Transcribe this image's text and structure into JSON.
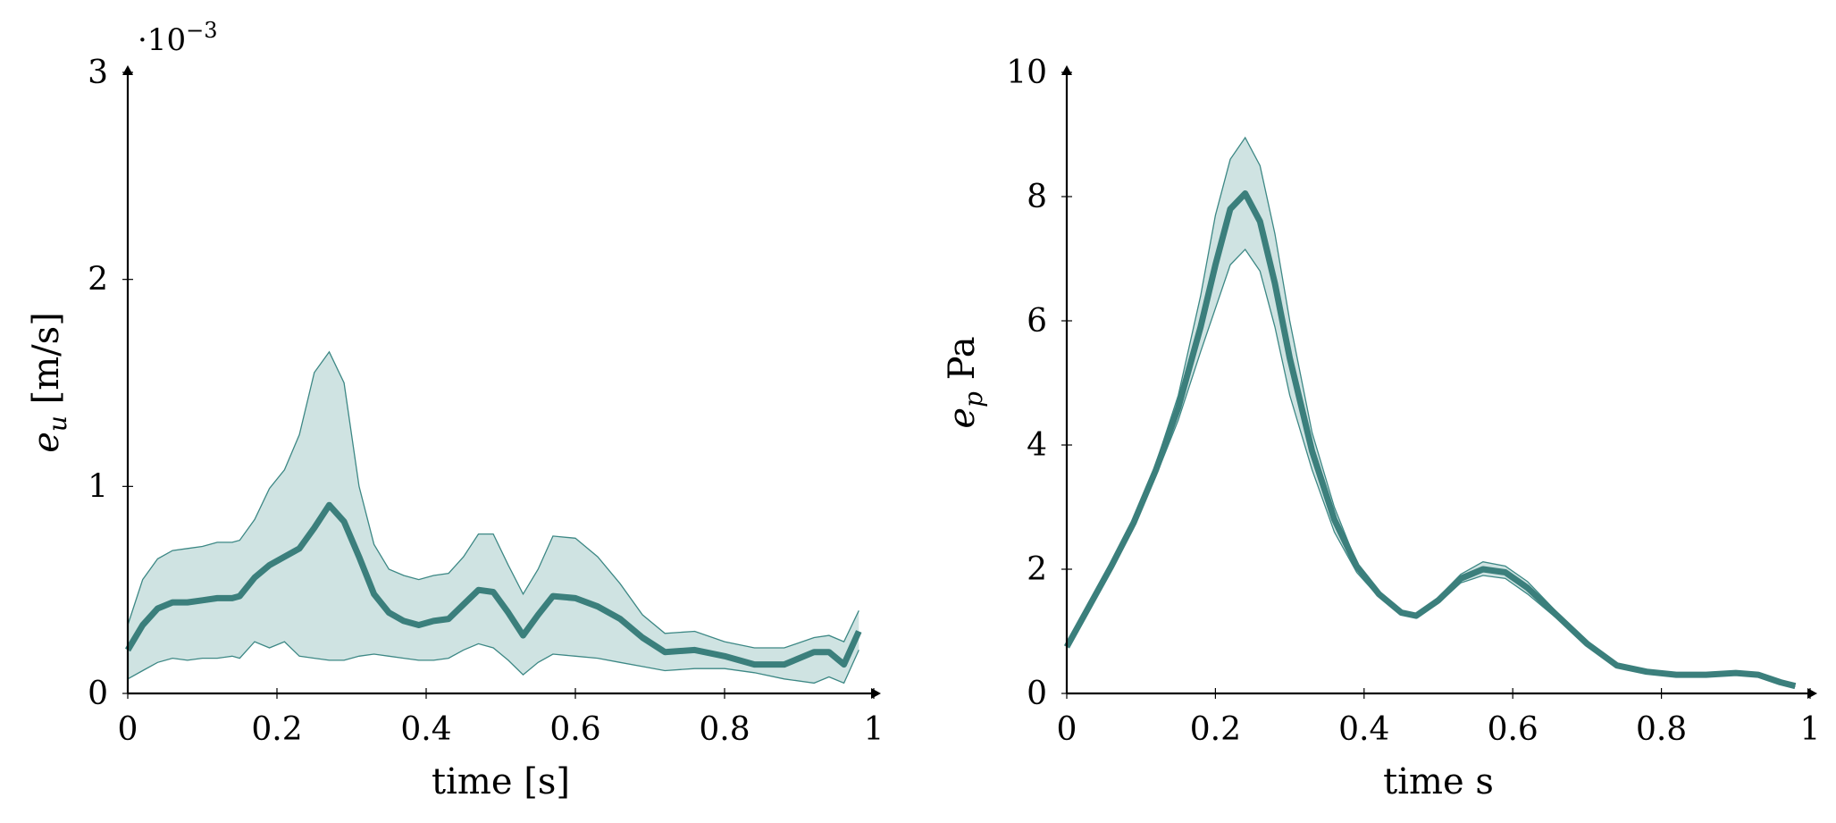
{
  "colors": {
    "band_fill": "#cfe3e2",
    "band_edge": "#3d8885",
    "mean_line": "#3b7f7c",
    "axis": "#000000"
  },
  "chart_data": [
    {
      "type": "area",
      "xlabel": "time [s]",
      "ylabel_main": "e",
      "ylabel_sub": "u",
      "ylabel_rest": " [m/s]",
      "y_multiplier_base": "·10",
      "y_multiplier_exp": "−3",
      "xlim": [
        0,
        1
      ],
      "ylim": [
        0,
        3
      ],
      "x_ticks": [
        0,
        0.2,
        0.4,
        0.6,
        0.8,
        1
      ],
      "x_tick_labels": [
        "0",
        "0.2",
        "0.4",
        "0.6",
        "0.8",
        "1"
      ],
      "y_ticks": [
        0,
        1,
        2,
        3
      ],
      "y_tick_labels": [
        "0",
        "1",
        "2",
        "3"
      ],
      "grid": false,
      "x": [
        0,
        0.02,
        0.04,
        0.06,
        0.08,
        0.1,
        0.12,
        0.14,
        0.15,
        0.17,
        0.19,
        0.21,
        0.23,
        0.25,
        0.27,
        0.29,
        0.31,
        0.33,
        0.35,
        0.37,
        0.39,
        0.41,
        0.43,
        0.45,
        0.47,
        0.49,
        0.51,
        0.53,
        0.55,
        0.57,
        0.6,
        0.63,
        0.66,
        0.69,
        0.72,
        0.76,
        0.8,
        0.84,
        0.88,
        0.92,
        0.94,
        0.96,
        0.98
      ],
      "series": [
        {
          "role": "mean",
          "values": [
            0.21,
            0.33,
            0.41,
            0.44,
            0.44,
            0.45,
            0.46,
            0.46,
            0.47,
            0.56,
            0.62,
            0.66,
            0.7,
            0.8,
            0.91,
            0.83,
            0.66,
            0.48,
            0.39,
            0.35,
            0.33,
            0.35,
            0.36,
            0.43,
            0.5,
            0.49,
            0.39,
            0.28,
            0.38,
            0.47,
            0.46,
            0.42,
            0.36,
            0.27,
            0.2,
            0.21,
            0.18,
            0.14,
            0.14,
            0.2,
            0.2,
            0.14,
            0.3
          ]
        },
        {
          "role": "upper",
          "values": [
            0.33,
            0.55,
            0.65,
            0.69,
            0.7,
            0.71,
            0.73,
            0.73,
            0.74,
            0.84,
            0.99,
            1.08,
            1.25,
            1.55,
            1.65,
            1.5,
            1.0,
            0.72,
            0.6,
            0.57,
            0.55,
            0.57,
            0.58,
            0.66,
            0.77,
            0.77,
            0.62,
            0.48,
            0.6,
            0.76,
            0.75,
            0.66,
            0.53,
            0.38,
            0.29,
            0.3,
            0.25,
            0.22,
            0.22,
            0.27,
            0.28,
            0.25,
            0.4
          ]
        },
        {
          "role": "lower",
          "values": [
            0.07,
            0.11,
            0.15,
            0.17,
            0.16,
            0.17,
            0.17,
            0.18,
            0.17,
            0.25,
            0.22,
            0.25,
            0.18,
            0.17,
            0.16,
            0.16,
            0.18,
            0.19,
            0.18,
            0.17,
            0.16,
            0.16,
            0.17,
            0.21,
            0.24,
            0.22,
            0.16,
            0.09,
            0.15,
            0.19,
            0.18,
            0.17,
            0.15,
            0.13,
            0.11,
            0.12,
            0.12,
            0.1,
            0.07,
            0.05,
            0.08,
            0.05,
            0.21
          ]
        }
      ]
    },
    {
      "type": "area",
      "xlabel": "time s",
      "ylabel_main": "e",
      "ylabel_sub": "p",
      "ylabel_rest": " Pa",
      "xlim": [
        0,
        1
      ],
      "ylim": [
        0,
        10
      ],
      "x_ticks": [
        0,
        0.2,
        0.4,
        0.6,
        0.8,
        1
      ],
      "x_tick_labels": [
        "0",
        "0.2",
        "0.4",
        "0.6",
        "0.8",
        "1"
      ],
      "y_ticks": [
        0,
        2,
        4,
        6,
        8,
        10
      ],
      "y_tick_labels": [
        "0",
        "2",
        "4",
        "6",
        "8",
        "10"
      ],
      "grid": false,
      "x": [
        0,
        0.03,
        0.06,
        0.09,
        0.12,
        0.15,
        0.18,
        0.2,
        0.22,
        0.24,
        0.26,
        0.28,
        0.3,
        0.33,
        0.36,
        0.39,
        0.42,
        0.45,
        0.47,
        0.5,
        0.53,
        0.56,
        0.59,
        0.62,
        0.66,
        0.7,
        0.74,
        0.78,
        0.82,
        0.86,
        0.9,
        0.93,
        0.96,
        0.98
      ],
      "series": [
        {
          "role": "mean",
          "values": [
            0.75,
            1.4,
            2.05,
            2.75,
            3.6,
            4.6,
            5.9,
            6.9,
            7.8,
            8.05,
            7.6,
            6.6,
            5.4,
            3.9,
            2.8,
            2.05,
            1.6,
            1.3,
            1.25,
            1.5,
            1.85,
            2.0,
            1.95,
            1.7,
            1.25,
            0.8,
            0.45,
            0.35,
            0.3,
            0.3,
            0.33,
            0.3,
            0.18,
            0.12
          ]
        },
        {
          "role": "upper",
          "values": [
            0.75,
            1.42,
            2.08,
            2.8,
            3.7,
            4.8,
            6.4,
            7.7,
            8.6,
            8.95,
            8.5,
            7.4,
            6.0,
            4.2,
            3.0,
            2.1,
            1.65,
            1.33,
            1.28,
            1.55,
            1.92,
            2.12,
            2.05,
            1.8,
            1.3,
            0.82,
            0.47,
            0.36,
            0.31,
            0.31,
            0.34,
            0.31,
            0.19,
            0.13
          ]
        },
        {
          "role": "lower",
          "values": [
            0.74,
            1.38,
            2.02,
            2.7,
            3.5,
            4.4,
            5.5,
            6.2,
            6.9,
            7.15,
            6.8,
            5.9,
            4.8,
            3.6,
            2.6,
            1.95,
            1.55,
            1.28,
            1.22,
            1.45,
            1.78,
            1.9,
            1.85,
            1.6,
            1.2,
            0.77,
            0.43,
            0.34,
            0.29,
            0.29,
            0.32,
            0.29,
            0.17,
            0.11
          ]
        }
      ]
    }
  ]
}
